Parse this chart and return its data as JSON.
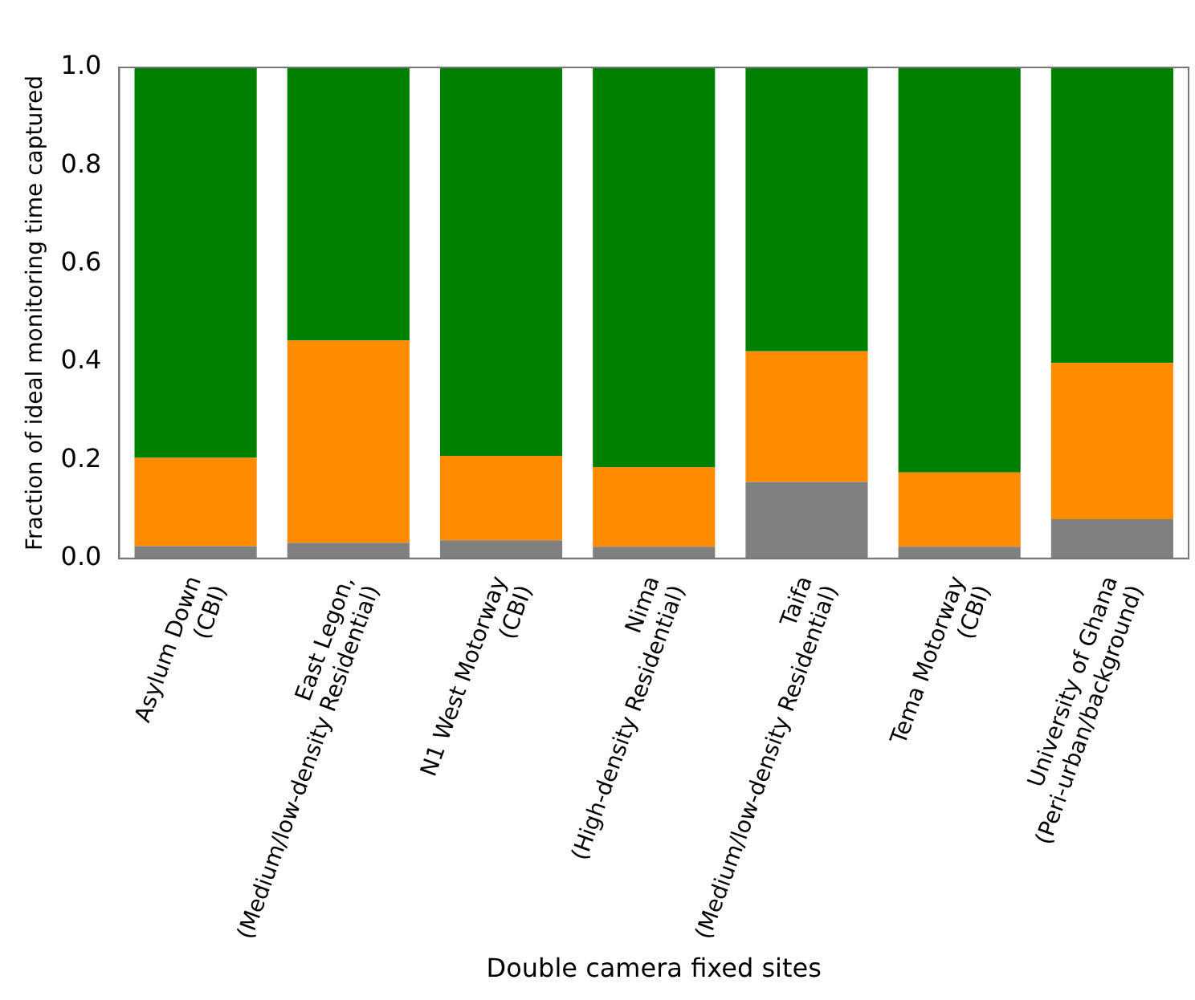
{
  "chart_data": {
    "type": "bar",
    "stacked": true,
    "xlabel": "Double camera fixed sites",
    "ylabel": "Fraction of ideal monitoring time captured",
    "categories": [
      "Asylum Down\n(CBI)",
      "East Legon,\n(Medium/low-density Residential)",
      "N1 West Motorway\n(CBI)",
      "Nima\n(High-density Residential)",
      "Taifa\n(Medium/low-density Residential)",
      "Tema Motorway\n(CBI)",
      "University of Ghana\n(Peri-urban/background)"
    ],
    "series": [
      {
        "color": "#808080",
        "values": [
          0.025,
          0.032,
          0.037,
          0.024,
          0.156,
          0.024,
          0.08
        ]
      },
      {
        "color": "#ff8c00",
        "values": [
          0.18,
          0.412,
          0.172,
          0.162,
          0.266,
          0.151,
          0.318
        ]
      },
      {
        "color": "#008000",
        "values": [
          0.795,
          0.556,
          0.791,
          0.814,
          0.578,
          0.825,
          0.602
        ]
      }
    ],
    "ylim": [
      0,
      1
    ],
    "yticks": [
      {
        "value": 0,
        "label": "0.0"
      },
      {
        "value": 0.2,
        "label": "0.2"
      },
      {
        "value": 0.4,
        "label": "0.4"
      },
      {
        "value": 0.6,
        "label": "0.6"
      },
      {
        "value": 0.8,
        "label": "0.8"
      },
      {
        "value": 1,
        "label": "1.0"
      }
    ],
    "grid": false,
    "legend": false
  }
}
